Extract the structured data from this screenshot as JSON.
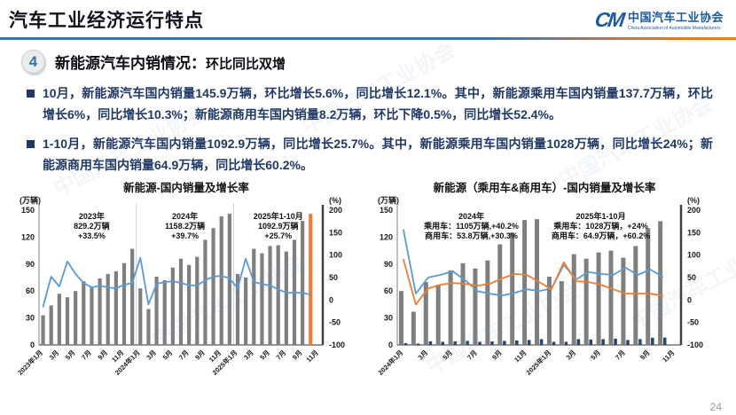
{
  "header": {
    "title": "汽车工业经济运行特点",
    "logo_mark": "CM",
    "logo_cn": "中国汽车工业协会",
    "logo_en": "China Association of Automobile Manufacturers"
  },
  "section": {
    "number": "4",
    "heading_main": "新能源汽车内销情况：",
    "heading_sub": "环比同比双增"
  },
  "bullets": [
    "10月，新能源汽车国内销量145.9万辆，环比增长5.6%，同比增长12.1%。其中，新能源乘用车国内销量137.7万辆，环比增长6%，同比增长10.3%；新能源商用车国内销量8.2万辆，环比下降0.5%，同比增长52.4%。",
    "1-10月，新能源汽车国内销量1092.9万辆，同比增长25.7%。其中，新能源乘用车国内销量1028万辆，同比增长24%；新能源商用车国内销量64.9万辆，同比增长60.2%。"
  ],
  "watermark": "中国汽车工业协会",
  "page_number": "24",
  "colors": {
    "accent_blue": "#2E74B5",
    "accent_orange": "#ED7D31",
    "bar_gray": "#7F7F7F",
    "bar_navy": "#24466B",
    "line_blue": "#5B9BD5",
    "text_navy": "#1F3864"
  },
  "chart_data": [
    {
      "type": "bar+line",
      "title": "新能源-国内销量及增长率",
      "slots": 35,
      "left_axis": {
        "unit": "(万辆)",
        "min": 0,
        "max": 150,
        "step": 30
      },
      "right_axis": {
        "unit": "(%)",
        "min": -100,
        "max": 200,
        "step": 50
      },
      "x_tick_labels": [
        "2023年1月",
        "3月",
        "5月",
        "7月",
        "9月",
        "11月",
        "2024年1月",
        "3月",
        "5月",
        "7月",
        "9月",
        "11月",
        "2025年1月",
        "3月",
        "5月",
        "7月",
        "9月",
        "11月"
      ],
      "separators": [
        12,
        24
      ],
      "bar_series": [
        {
          "name": "新能源国内销量(万辆)",
          "color": "#7F7F7F",
          "highlight_last": true,
          "highlight_color": "#ED7D31",
          "values": [
            33,
            44,
            57,
            53,
            60,
            71,
            64,
            74,
            79,
            82,
            91,
            107,
            63,
            40,
            76,
            72,
            86,
            96,
            89,
            98,
            117,
            130,
            143,
            146,
            79,
            75,
            107,
            102,
            110,
            111,
            104,
            117,
            138,
            145.9
          ]
        }
      ],
      "line_series": [
        {
          "name": "同比增长率(%)",
          "color": "#5B9BD5",
          "axis": "right",
          "values": [
            -15,
            52,
            30,
            86,
            58,
            38,
            28,
            32,
            28,
            26,
            34,
            38,
            94,
            -10,
            36,
            40,
            42,
            38,
            33,
            32,
            44,
            52,
            54,
            48,
            26,
            92,
            40,
            36,
            32,
            24,
            16,
            16,
            16,
            12
          ]
        }
      ],
      "annotations": [
        {
          "slot": 6,
          "lines": [
            "2023年",
            "829.2万辆",
            "+33.5%"
          ]
        },
        {
          "slot": 17.5,
          "lines": [
            "2024年",
            "1158.2万辆",
            "+39.7%"
          ]
        },
        {
          "slot": 29,
          "lines": [
            "2025年1-10月",
            "1092.9万辆",
            "+25.7%"
          ]
        }
      ]
    },
    {
      "type": "bar+line",
      "title": "新能源（乘用车&商用车）-国内销量及增长率",
      "slots": 23,
      "left_axis": {
        "unit": "(万辆)",
        "min": 0,
        "max": 150,
        "step": 30
      },
      "right_axis": {
        "unit": "(%)",
        "min": -100,
        "max": 200,
        "step": 50
      },
      "x_tick_labels": [
        "2024年1月",
        "3月",
        "5月",
        "7月",
        "9月",
        "11月",
        "2025年1月",
        "3月",
        "5月",
        "7月",
        "9月",
        "11月"
      ],
      "separators": [],
      "bar_series": [
        {
          "name": "乘用车国内销量(万辆)",
          "color": "#7F7F7F",
          "values": [
            60,
            37,
            70,
            67,
            83,
            91,
            85,
            94,
            112,
            125,
            139,
            140,
            76,
            71,
            101,
            96,
            103,
            105,
            97,
            110,
            130,
            137.7
          ]
        },
        {
          "name": "商用车国内销量(万辆)",
          "color": "#24466B",
          "values": [
            2,
            1.5,
            4,
            3.5,
            4,
            4.5,
            3.5,
            4,
            4.5,
            5,
            5.5,
            6.5,
            3.5,
            3.5,
            6.5,
            6,
            6.5,
            7,
            5.5,
            6.5,
            8,
            8.2
          ]
        }
      ],
      "line_series": [
        {
          "name": "商用车同比增长率(%)",
          "color": "#5B9BD5",
          "axis": "right",
          "values": [
            156,
            14,
            50,
            56,
            64,
            44,
            20,
            14,
            10,
            16,
            24,
            20,
            26,
            78,
            46,
            62,
            58,
            56,
            72,
            56,
            68,
            52
          ]
        },
        {
          "name": "乘用车同比增长率(%)",
          "color": "#ED7D31",
          "axis": "right",
          "values": [
            90,
            -10,
            26,
            34,
            38,
            36,
            32,
            36,
            48,
            58,
            56,
            40,
            24,
            84,
            42,
            40,
            34,
            24,
            14,
            14,
            14,
            10
          ]
        }
      ],
      "annotations": [
        {
          "slot": 5.5,
          "lines": [
            "2024年",
            "乘用车：1105万辆,+40.2%",
            "商用车：53.8万辆,+30.3%"
          ]
        },
        {
          "slot": 16,
          "lines": [
            "2025年1-10月",
            "乘用车：1028万辆，+24%",
            "商用车：64.9万辆，+60.2%"
          ]
        }
      ]
    }
  ]
}
